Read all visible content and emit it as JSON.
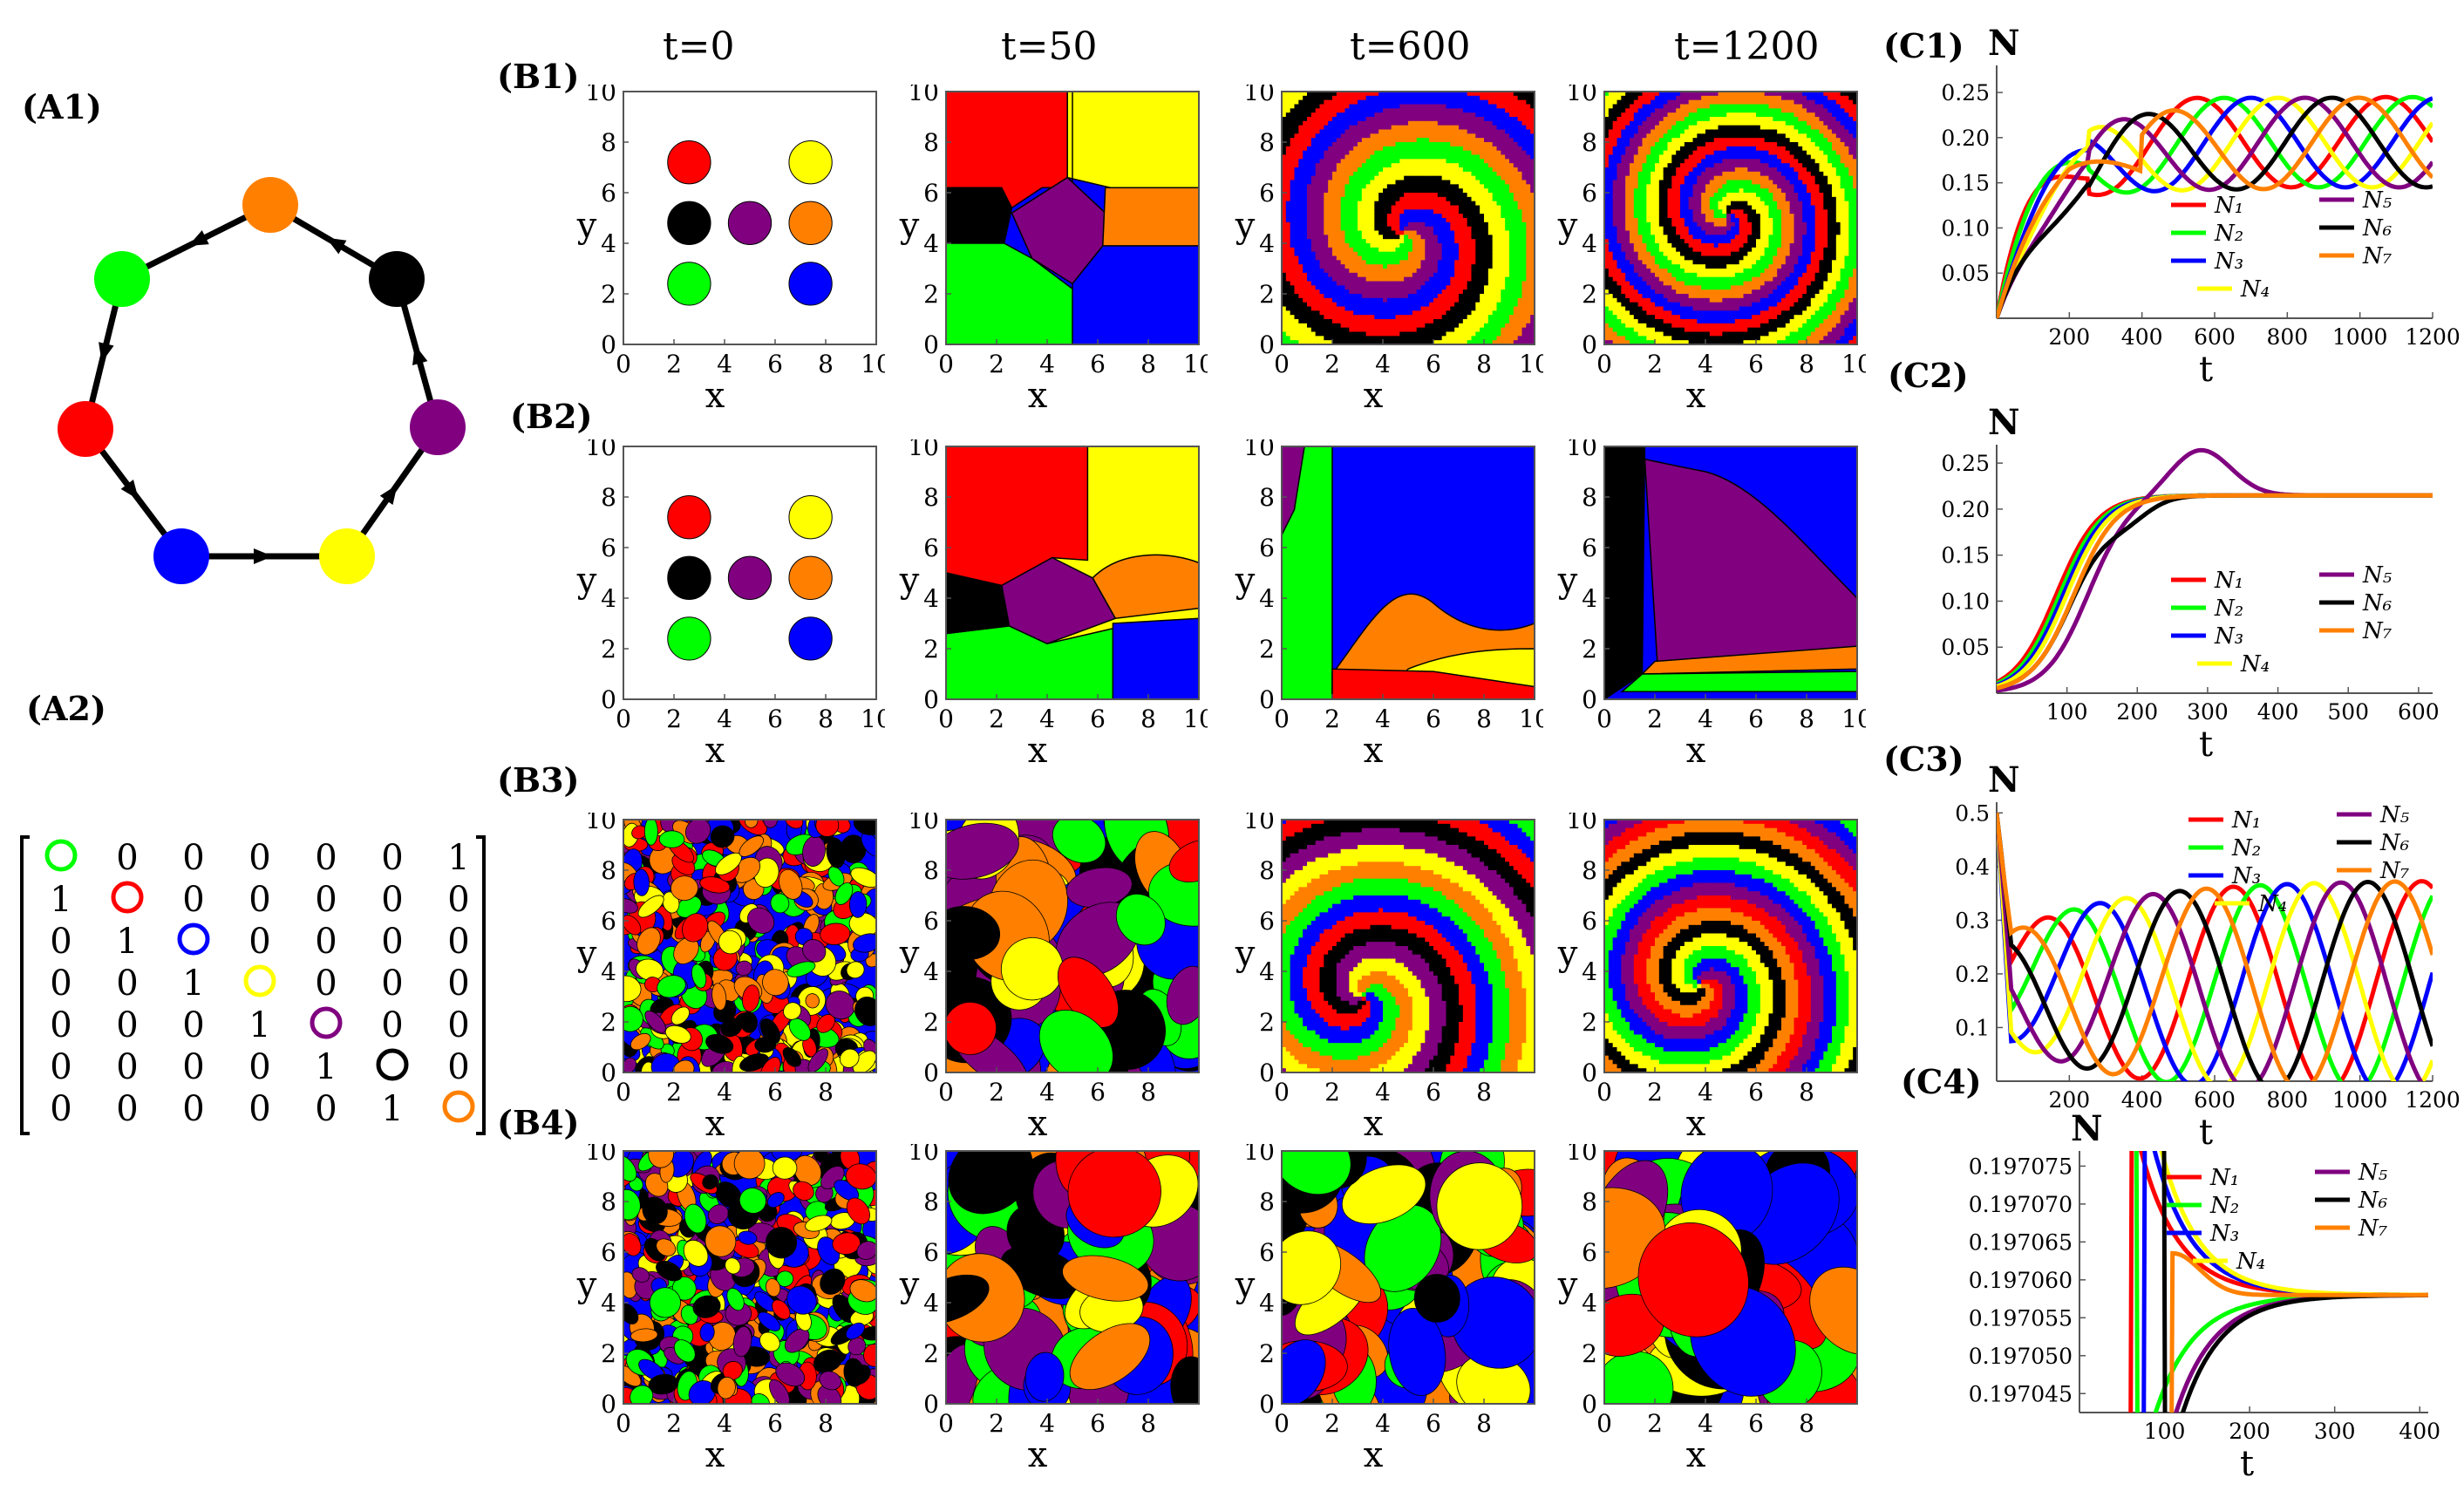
{
  "labels": {
    "A1": "(A1)",
    "A2": "(A2)",
    "B1": "(B1)",
    "B2": "(B2)",
    "B3": "(B3)",
    "B4": "(B4)",
    "C1": "(C1)",
    "C2": "(C2)",
    "C3": "(C3)",
    "C4": "(C4)"
  },
  "times": [
    "t=0",
    "t=50",
    "t=600",
    "t=1200"
  ],
  "species_colors": [
    "#00ff00",
    "#ff0000",
    "#0000ff",
    "#ffff00",
    "#800080",
    "#000000",
    "#ff8000"
  ],
  "network": {
    "nodes_order": [
      "orange",
      "black",
      "purple",
      "yellow",
      "blue",
      "red",
      "green"
    ],
    "node_colors": {
      "orange": "#ff8000",
      "black": "#000000",
      "purple": "#800080",
      "yellow": "#ffff00",
      "blue": "#0000ff",
      "red": "#ff0000",
      "green": "#00ff00"
    }
  },
  "matrix": {
    "rows": [
      [
        "○",
        "0",
        "0",
        "0",
        "0",
        "0",
        "1"
      ],
      [
        "1",
        "○",
        "0",
        "0",
        "0",
        "0",
        "0"
      ],
      [
        "0",
        "1",
        "○",
        "0",
        "0",
        "0",
        "0"
      ],
      [
        "0",
        "0",
        "1",
        "○",
        "0",
        "0",
        "0"
      ],
      [
        "0",
        "0",
        "0",
        "1",
        "○",
        "0",
        "0"
      ],
      [
        "0",
        "0",
        "0",
        "0",
        "1",
        "○",
        "0"
      ],
      [
        "0",
        "0",
        "0",
        "0",
        "0",
        "1",
        "○"
      ]
    ],
    "diag_colors": [
      "#00ff00",
      "#ff0000",
      "#0000ff",
      "#ffff00",
      "#800080",
      "#000000",
      "#ff8000"
    ]
  },
  "axes": {
    "x_label": "x",
    "y_label": "y",
    "ticks_full": [
      "0",
      "2",
      "4",
      "6",
      "8",
      "10"
    ],
    "ticks_short": [
      "0",
      "2",
      "4",
      "6",
      "8"
    ]
  },
  "legend": {
    "entries": [
      "N₁",
      "N₂",
      "N₃",
      "N₄",
      "N₅",
      "N₆",
      "N₇"
    ]
  },
  "chart_data": [
    {
      "panel": "C1",
      "type": "line",
      "ylabel": "N",
      "xlabel": "t",
      "xticks": [
        "200",
        "400",
        "600",
        "800",
        "1000",
        "1200"
      ],
      "yticks": [
        "0.05",
        "0.10",
        "0.15",
        "0.20",
        "0.25"
      ],
      "xlim": [
        0,
        1200
      ],
      "ylim": [
        0,
        0.28
      ],
      "series": [
        {
          "name": "N₁",
          "color": "#ff0000"
        },
        {
          "name": "N₂",
          "color": "#00ff00"
        },
        {
          "name": "N₃",
          "color": "#0000ff"
        },
        {
          "name": "N₄",
          "color": "#ffff00"
        },
        {
          "name": "N₅",
          "color": "#800080"
        },
        {
          "name": "N₆",
          "color": "#000000"
        },
        {
          "name": "N₇",
          "color": "#ff8000"
        }
      ]
    },
    {
      "panel": "C2",
      "type": "line",
      "ylabel": "N",
      "xlabel": "t",
      "xticks": [
        "100",
        "200",
        "300",
        "400",
        "500",
        "600"
      ],
      "yticks": [
        "0.05",
        "0.10",
        "0.15",
        "0.20",
        "0.25"
      ],
      "xlim": [
        0,
        620
      ],
      "ylim": [
        0,
        0.27
      ],
      "final_value": 0.215
    },
    {
      "panel": "C3",
      "type": "line",
      "ylabel": "N",
      "xlabel": "t",
      "xticks": [
        "200",
        "400",
        "600",
        "800",
        "1000",
        "1200"
      ],
      "yticks": [
        "0.1",
        "0.2",
        "0.3",
        "0.4",
        "0.5"
      ],
      "xlim": [
        0,
        1200
      ],
      "ylim": [
        0,
        0.52
      ]
    },
    {
      "panel": "C4",
      "type": "line",
      "ylabel": "N",
      "xlabel": "t",
      "xticks": [
        "100",
        "200",
        "300",
        "400"
      ],
      "yticks": [
        "0.197045",
        "0.197050",
        "0.197055",
        "0.197060",
        "0.197065",
        "0.197070",
        "0.197075"
      ],
      "xlim": [
        0,
        410
      ],
      "ylim": [
        0.1970425,
        0.197077
      ],
      "final_value": 0.197058
    }
  ]
}
